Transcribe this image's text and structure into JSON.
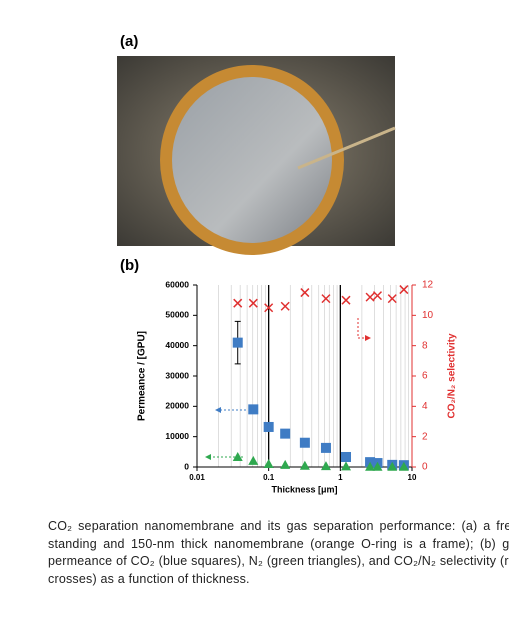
{
  "panels": {
    "a": "(a)",
    "b": "(b)"
  },
  "chart_data": {
    "type": "scatter",
    "xlabel": "Thickness [μm]",
    "ylabel": "Permeance / [GPU]",
    "y2label": "CO₂/N₂ selectivity",
    "xscale": "log",
    "xlim": [
      0.01,
      10
    ],
    "xticks": [
      0.01,
      0.1,
      1,
      10
    ],
    "ylim": [
      0,
      60000
    ],
    "yticks": [
      0,
      10000,
      20000,
      30000,
      40000,
      50000,
      60000
    ],
    "y2lim": [
      0,
      12
    ],
    "y2ticks": [
      0,
      2,
      4,
      6,
      8,
      10,
      12
    ],
    "grid": true,
    "x": [
      0.037,
      0.061,
      0.1,
      0.17,
      0.32,
      0.63,
      1.2,
      2.6,
      3.3,
      5.3,
      7.7
    ],
    "series": [
      {
        "marker": "square",
        "color": "#3f7cc4",
        "values": [
          41000,
          19000,
          13200,
          11000,
          8000,
          6300,
          3300,
          1600,
          1300,
          700,
          600
        ],
        "errors": [
          7000,
          null,
          null,
          null,
          null,
          null,
          null,
          null,
          null,
          null,
          null
        ]
      },
      {
        "marker": "triangle",
        "color": "#2fa84f",
        "values": [
          3300,
          2000,
          1000,
          700,
          400,
          300,
          200,
          100,
          100,
          100,
          100
        ]
      },
      {
        "marker": "cross",
        "color": "#e03030",
        "axis": "y2",
        "values": [
          10.8,
          10.8,
          10.5,
          10.6,
          11.5,
          11.1,
          11.0,
          11.2,
          11.3,
          11.1,
          11.7
        ]
      }
    ]
  },
  "caption": "CO₂ separation nanomembrane and its gas separation performance: (a) a free-standing and 150-nm thick nanomembrane (orange O-ring is a frame); (b) gas permeance of CO₂ (blue squares), N₂ (green triangles), and CO₂/N₂ selectivity (red crosses) as a function of thickness."
}
